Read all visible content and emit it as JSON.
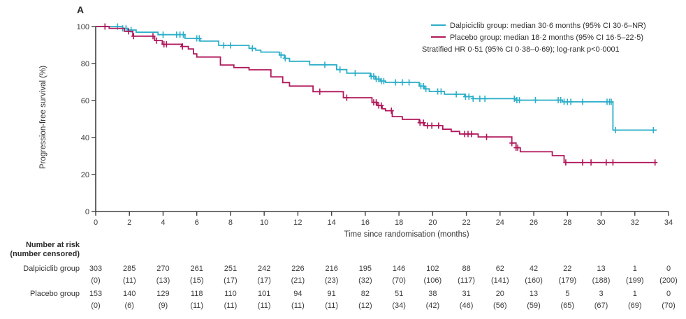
{
  "panel_label": "A",
  "legend": {
    "dalpiciclib": "Dalpiciclib group: median 30·6 months (95% CI 30·6–NR)",
    "placebo": "Placebo group: median 18·2 months (95% CI 16·5–22·5)",
    "stratified": "Stratified HR 0·51 (95% CI 0·38–0·69); log-rank p<0·0001"
  },
  "colors": {
    "dalpiciclib": "#2BAEC9",
    "placebo": "#B0175A",
    "axis": "#404040"
  },
  "chart_data": {
    "type": "line",
    "subtype": "kaplan-meier-step",
    "xlabel": "Time since randomisation (months)",
    "ylabel": "Progression-free survival (%)",
    "xlim": [
      0,
      34
    ],
    "ylim": [
      0,
      100
    ],
    "xticks": [
      0,
      2,
      4,
      6,
      8,
      10,
      12,
      14,
      16,
      18,
      20,
      22,
      24,
      26,
      28,
      30,
      32,
      34
    ],
    "yticks": [
      0,
      20,
      40,
      60,
      80,
      100
    ],
    "grid": false,
    "legend_position": "top-right",
    "series": [
      {
        "name": "Dalpiciclib group",
        "color": "#2BAEC9",
        "steps": [
          [
            0,
            100
          ],
          [
            1.6,
            99
          ],
          [
            1.9,
            98.1
          ],
          [
            2.4,
            96.9
          ],
          [
            3.7,
            95.6
          ],
          [
            5.3,
            93.6
          ],
          [
            6.2,
            92.1
          ],
          [
            7.3,
            89.8
          ],
          [
            9.1,
            88.2
          ],
          [
            9.5,
            87.2
          ],
          [
            9.8,
            86.2
          ],
          [
            10.9,
            84.6
          ],
          [
            11.2,
            82.8
          ],
          [
            11.5,
            81.2
          ],
          [
            12.7,
            79.3
          ],
          [
            14.3,
            76.7
          ],
          [
            14.9,
            74.8
          ],
          [
            16.3,
            73.1
          ],
          [
            16.6,
            71.6
          ],
          [
            16.9,
            70.5
          ],
          [
            17.2,
            69.8
          ],
          [
            19.2,
            67.8
          ],
          [
            19.5,
            66.3
          ],
          [
            19.8,
            64.9
          ],
          [
            20.7,
            63.4
          ],
          [
            21.9,
            62.1
          ],
          [
            22.4,
            61.0
          ],
          [
            24.9,
            60.2
          ],
          [
            27.7,
            59.3
          ],
          [
            30.7,
            44.0
          ],
          [
            33.3,
            44.0
          ]
        ],
        "censors": [
          1.3,
          1.6,
          1.8,
          2.1,
          4.0,
          4.8,
          5.0,
          5.2,
          6.0,
          6.15,
          7.6,
          8.0,
          9.3,
          11.0,
          11.25,
          13.6,
          14.5,
          15.4,
          16.35,
          16.5,
          16.65,
          16.8,
          16.95,
          17.1,
          17.8,
          18.2,
          18.6,
          19.3,
          19.45,
          19.6,
          20.3,
          20.5,
          21.4,
          21.95,
          22.15,
          22.4,
          22.8,
          23.1,
          24.85,
          25.0,
          25.15,
          26.1,
          27.45,
          27.6,
          27.8,
          28.0,
          28.2,
          28.9,
          30.35,
          30.5,
          30.6,
          30.85,
          33.1
        ]
      },
      {
        "name": "Placebo group",
        "color": "#B0175A",
        "steps": [
          [
            0,
            100
          ],
          [
            0.8,
            99.0
          ],
          [
            1.7,
            97.4
          ],
          [
            2.2,
            94.8
          ],
          [
            3.5,
            92.4
          ],
          [
            3.95,
            90.4
          ],
          [
            5.1,
            89.2
          ],
          [
            5.5,
            87.9
          ],
          [
            5.8,
            85.2
          ],
          [
            6.0,
            83.5
          ],
          [
            7.4,
            79.2
          ],
          [
            8.2,
            77.8
          ],
          [
            9.1,
            76.6
          ],
          [
            10.4,
            72.8
          ],
          [
            11.1,
            69.7
          ],
          [
            11.5,
            67.8
          ],
          [
            12.9,
            64.8
          ],
          [
            14.7,
            61.5
          ],
          [
            16.4,
            59.0
          ],
          [
            16.7,
            57.3
          ],
          [
            17.0,
            55.5
          ],
          [
            17.2,
            54.5
          ],
          [
            17.6,
            51.3
          ],
          [
            18.2,
            49.8
          ],
          [
            19.2,
            48.0
          ],
          [
            19.5,
            46.4
          ],
          [
            20.6,
            44.5
          ],
          [
            21.1,
            43.3
          ],
          [
            21.6,
            41.9
          ],
          [
            22.7,
            40.3
          ],
          [
            24.7,
            37.0
          ],
          [
            24.95,
            34.5
          ],
          [
            25.2,
            32.3
          ],
          [
            27.1,
            30.2
          ],
          [
            27.8,
            26.5
          ],
          [
            33.3,
            26.5
          ]
        ],
        "censors": [
          0.55,
          1.95,
          2.25,
          3.4,
          3.6,
          4.05,
          4.2,
          5.15,
          13.3,
          14.9,
          16.5,
          16.65,
          16.8,
          16.95,
          17.55,
          19.25,
          19.45,
          19.7,
          19.95,
          20.35,
          21.9,
          22.1,
          22.3,
          23.2,
          24.7,
          24.95,
          25.05,
          27.9,
          28.9,
          29.4,
          30.3,
          30.7,
          33.2
        ]
      }
    ]
  },
  "risk_table": {
    "header_line1": "Number at risk",
    "header_line2": "(number censored)",
    "months": [
      0,
      2,
      4,
      6,
      8,
      10,
      12,
      14,
      16,
      18,
      20,
      22,
      24,
      26,
      28,
      30,
      32,
      34
    ],
    "rows": [
      {
        "label": "Dalpiciclib group",
        "at_risk": [
          "303",
          "285",
          "270",
          "261",
          "251",
          "242",
          "226",
          "216",
          "195",
          "146",
          "102",
          "88",
          "62",
          "42",
          "22",
          "13",
          "1",
          "0"
        ],
        "censored": [
          "(0)",
          "(11)",
          "(13)",
          "(15)",
          "(17)",
          "(17)",
          "(21)",
          "(23)",
          "(32)",
          "(70)",
          "(106)",
          "(117)",
          "(141)",
          "(160)",
          "(179)",
          "(188)",
          "(199)",
          "(200)"
        ]
      },
      {
        "label": "Placebo group",
        "at_risk": [
          "153",
          "140",
          "129",
          "118",
          "110",
          "101",
          "94",
          "91",
          "82",
          "51",
          "38",
          "31",
          "20",
          "13",
          "5",
          "3",
          "1",
          "0"
        ],
        "censored": [
          "(0)",
          "(6)",
          "(9)",
          "(11)",
          "(11)",
          "(11)",
          "(11)",
          "(11)",
          "(12)",
          "(34)",
          "(42)",
          "(46)",
          "(56)",
          "(59)",
          "(65)",
          "(67)",
          "(69)",
          "(70)"
        ]
      }
    ]
  }
}
